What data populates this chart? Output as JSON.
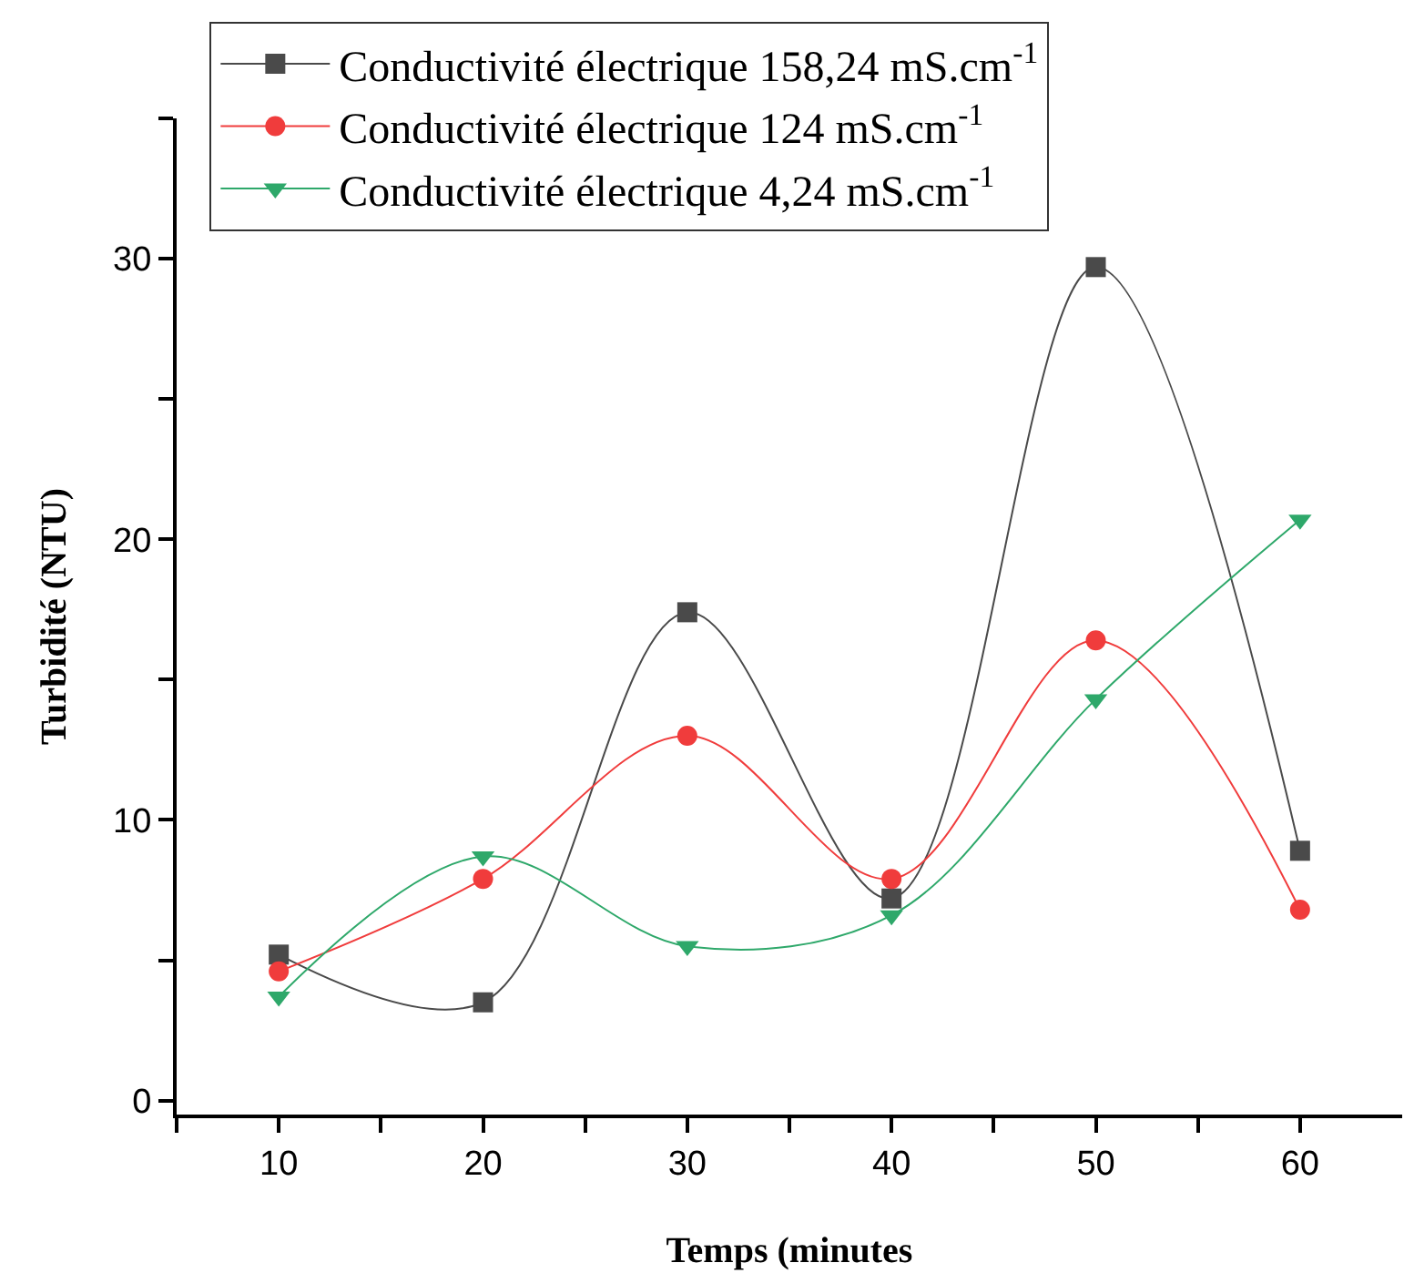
{
  "chart_data": {
    "type": "line",
    "xlabel": "Temps (minutes",
    "ylabel": "Turbidité (NTU)",
    "x": [
      10,
      20,
      30,
      40,
      50,
      60
    ],
    "series": [
      {
        "name": "Conductivité électrique 158,24 mS.cm$^{-1}$",
        "color": "#4a4a4a",
        "marker": "square",
        "values": [
          5.2,
          3.5,
          17.4,
          7.2,
          29.7,
          8.9
        ]
      },
      {
        "name": "Conductivité électrique 124 mS.cm$^{-1}$",
        "color": "#f03c3c",
        "marker": "circle",
        "values": [
          4.6,
          7.9,
          13.0,
          7.9,
          16.4,
          6.8
        ]
      },
      {
        "name": "Conductivité électrique 4,24 mS.cm$^{-1}$",
        "color": "#2ea86a",
        "marker": "triangle",
        "values": [
          3.7,
          8.7,
          5.5,
          6.6,
          14.3,
          20.7
        ]
      }
    ],
    "xlim": [
      5,
      65
    ],
    "xticks": [
      {
        "value": 5,
        "label": null
      },
      10,
      {
        "value": 15,
        "label": null
      },
      20,
      {
        "value": 25,
        "label": null
      },
      30,
      {
        "value": 35,
        "label": null
      },
      40,
      {
        "value": 45,
        "label": null
      },
      50,
      {
        "value": 55,
        "label": null
      },
      60
    ],
    "ylim": [
      -0.5,
      35
    ],
    "yticks": [
      0,
      {
        "value": 5,
        "label": null
      },
      10,
      {
        "value": 15,
        "label": null
      },
      20,
      {
        "value": 25,
        "label": null
      },
      30,
      {
        "value": 35,
        "label": null
      }
    ],
    "grid": false,
    "legend": "top left",
    "line_style": "solid"
  }
}
